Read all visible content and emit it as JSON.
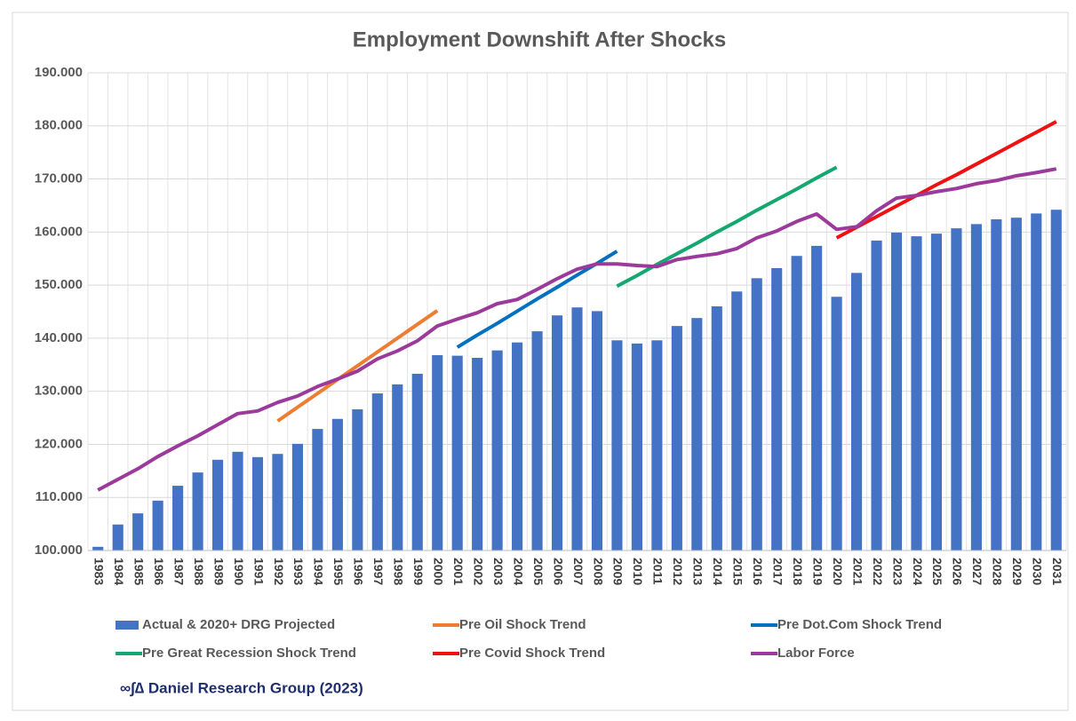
{
  "chart_data": {
    "type": "bar",
    "title": "Employment Downshift After Shocks",
    "categories": [
      "1983",
      "1984",
      "1985",
      "1986",
      "1987",
      "1988",
      "1989",
      "1990",
      "1991",
      "1992",
      "1993",
      "1994",
      "1995",
      "1996",
      "1997",
      "1998",
      "1999",
      "2000",
      "2001",
      "2002",
      "2003",
      "2004",
      "2005",
      "2006",
      "2007",
      "2008",
      "2009",
      "2010",
      "2011",
      "2012",
      "2013",
      "2014",
      "2015",
      "2016",
      "2017",
      "2018",
      "2019",
      "2020",
      "2021",
      "2022",
      "2023",
      "2024",
      "2025",
      "2026",
      "2027",
      "2028",
      "2029",
      "2030",
      "2031"
    ],
    "ylim": [
      100,
      190
    ],
    "yticks": [
      {
        "value": 100,
        "label": "100.000"
      },
      {
        "value": 110,
        "label": "110.000"
      },
      {
        "value": 120,
        "label": "120.000"
      },
      {
        "value": 130,
        "label": "130.000"
      },
      {
        "value": 140,
        "label": "140.000"
      },
      {
        "value": 150,
        "label": "150.000"
      },
      {
        "value": 160,
        "label": "160.000"
      },
      {
        "value": 170,
        "label": "170.000"
      },
      {
        "value": 180,
        "label": "180.000"
      },
      {
        "value": 190,
        "label": "190.000"
      }
    ],
    "grid": true,
    "legend": "bottom",
    "series": [
      {
        "name": "Actual &  2020+ DRG Projected",
        "type": "bar",
        "color": "#4472c4",
        "values": [
          100.7,
          104.9,
          107.0,
          109.4,
          112.2,
          114.7,
          117.1,
          118.6,
          117.6,
          118.2,
          120.1,
          122.9,
          124.8,
          126.6,
          129.6,
          131.3,
          133.3,
          136.8,
          136.7,
          136.3,
          137.7,
          139.2,
          141.3,
          144.3,
          145.8,
          145.1,
          139.6,
          139.0,
          139.6,
          142.3,
          143.8,
          146.0,
          148.8,
          151.3,
          153.2,
          155.5,
          157.4,
          147.8,
          152.3,
          158.4,
          159.9,
          159.2,
          159.7,
          160.7,
          161.5,
          162.4,
          162.7,
          163.5,
          164.2
        ]
      },
      {
        "name": "Pre Oil Shock Trend",
        "type": "line",
        "color": "#ed7d31",
        "values": [
          null,
          null,
          null,
          null,
          null,
          null,
          null,
          null,
          null,
          124.4,
          127.0,
          129.6,
          132.2,
          134.8,
          137.4,
          140.0,
          142.6,
          145.2,
          null,
          null,
          null,
          null,
          null,
          null,
          null,
          null,
          null,
          null,
          null,
          null,
          null,
          null,
          null,
          null,
          null,
          null,
          null,
          null,
          null,
          null,
          null,
          null,
          null,
          null,
          null,
          null,
          null,
          null,
          null
        ]
      },
      {
        "name": "Pre Dot.Com Shock Trend",
        "type": "line",
        "color": "#0070c0",
        "values": [
          null,
          null,
          null,
          null,
          null,
          null,
          null,
          null,
          null,
          null,
          null,
          null,
          null,
          null,
          null,
          null,
          null,
          null,
          138.3,
          140.6,
          142.8,
          145.1,
          147.4,
          149.6,
          151.9,
          154.1,
          156.4,
          null,
          null,
          null,
          null,
          null,
          null,
          null,
          null,
          null,
          null,
          null,
          null,
          null,
          null,
          null,
          null,
          null,
          null,
          null,
          null,
          null,
          null
        ]
      },
      {
        "name": "Pre Great Recession Shock Trend",
        "type": "line",
        "color": "#12a870",
        "values": [
          null,
          null,
          null,
          null,
          null,
          null,
          null,
          null,
          null,
          null,
          null,
          null,
          null,
          null,
          null,
          null,
          null,
          null,
          null,
          null,
          null,
          null,
          null,
          null,
          null,
          null,
          149.8,
          151.8,
          153.9,
          155.9,
          157.9,
          160.0,
          162.0,
          164.1,
          166.1,
          168.1,
          170.2,
          172.2,
          null,
          null,
          null,
          null,
          null,
          null,
          null,
          null,
          null,
          null,
          null
        ]
      },
      {
        "name": "Pre Covid Shock Trend",
        "type": "line",
        "color": "#ee1111",
        "values": [
          null,
          null,
          null,
          null,
          null,
          null,
          null,
          null,
          null,
          null,
          null,
          null,
          null,
          null,
          null,
          null,
          null,
          null,
          null,
          null,
          null,
          null,
          null,
          null,
          null,
          null,
          null,
          null,
          null,
          null,
          null,
          null,
          null,
          null,
          null,
          null,
          null,
          158.9,
          160.9,
          162.9,
          164.9,
          166.9,
          168.9,
          170.8,
          172.8,
          174.8,
          176.8,
          178.8,
          180.8
        ]
      },
      {
        "name": "Labor Force",
        "type": "line",
        "color": "#9b3a9b",
        "values": [
          111.4,
          113.4,
          115.4,
          117.7,
          119.7,
          121.6,
          123.7,
          125.8,
          126.3,
          127.9,
          129.1,
          130.9,
          132.3,
          133.8,
          136.1,
          137.6,
          139.5,
          142.3,
          143.6,
          144.8,
          146.5,
          147.3,
          149.2,
          151.2,
          153.0,
          154.0,
          154.0,
          153.7,
          153.5,
          154.8,
          155.4,
          155.9,
          156.9,
          158.9,
          160.2,
          162.0,
          163.4,
          160.5,
          161.0,
          164.0,
          166.4,
          166.9,
          167.6,
          168.2,
          169.1,
          169.7,
          170.6,
          171.2,
          171.9
        ]
      }
    ],
    "source": "∞∫∆ Daniel Research Group (2023)"
  }
}
